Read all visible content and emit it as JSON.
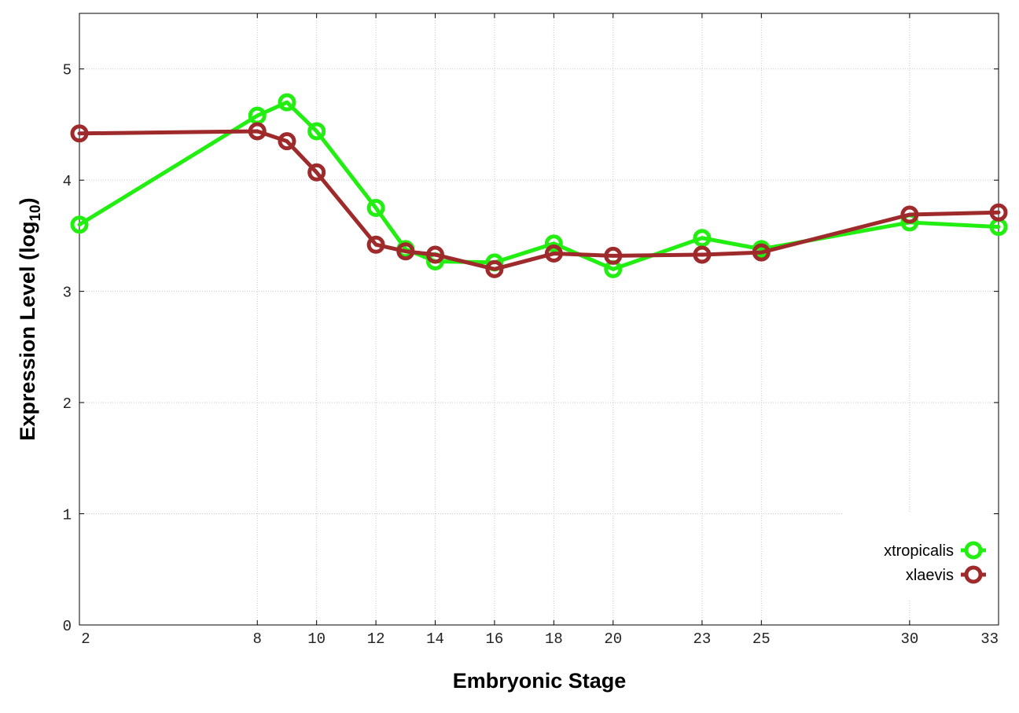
{
  "chart_data": {
    "type": "line",
    "xlabel": "Embryonic Stage",
    "ylabel": "Expression Level (log",
    "ylabel_subscript": "10",
    "ylabel_suffix": ")",
    "x_ticks": [
      2,
      8,
      10,
      12,
      14,
      16,
      18,
      20,
      23,
      25,
      30,
      33
    ],
    "y_ticks": [
      0,
      1,
      2,
      3,
      4,
      5
    ],
    "xlim": [
      2,
      33
    ],
    "ylim": [
      0,
      5.5
    ],
    "grid": true,
    "legend_position": "bottom-right",
    "x": [
      2,
      8,
      9,
      10,
      12,
      13,
      14,
      16,
      18,
      20,
      23,
      25,
      30,
      33
    ],
    "series": [
      {
        "name": "xtropicalis",
        "color": "#22ee11",
        "values": [
          3.6,
          4.58,
          4.7,
          4.44,
          3.75,
          3.38,
          3.27,
          3.26,
          3.43,
          3.2,
          3.48,
          3.38,
          3.62,
          3.58
        ]
      },
      {
        "name": "xlaevis",
        "color": "#9e2a2b",
        "values": [
          4.42,
          4.44,
          4.35,
          4.07,
          3.42,
          3.36,
          3.33,
          3.2,
          3.34,
          3.32,
          3.33,
          3.35,
          3.69,
          3.71
        ]
      }
    ]
  }
}
